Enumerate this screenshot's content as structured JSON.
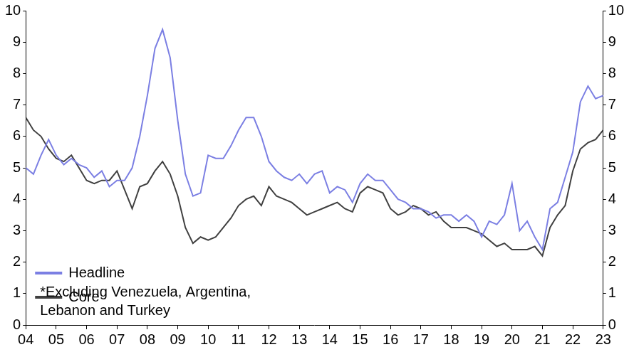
{
  "chart_data": {
    "type": "line",
    "categories": [
      "04",
      null,
      null,
      null,
      "05",
      null,
      null,
      null,
      "06",
      null,
      null,
      null,
      "07",
      null,
      null,
      null,
      "08",
      null,
      null,
      null,
      "09",
      null,
      null,
      null,
      "10",
      null,
      null,
      null,
      "11",
      null,
      null,
      null,
      "12",
      null,
      null,
      null,
      "13",
      null,
      null,
      null,
      "14",
      null,
      null,
      null,
      "15",
      null,
      null,
      null,
      "16",
      null,
      null,
      null,
      "17",
      null,
      null,
      null,
      "18",
      null,
      null,
      null,
      "19",
      null,
      null,
      null,
      "20",
      null,
      null,
      null,
      "21",
      null,
      null,
      null,
      "22",
      null,
      null,
      null,
      "23"
    ],
    "series": [
      {
        "name": "Headline",
        "color": "#7b7fe3",
        "values": [
          5.0,
          4.8,
          5.4,
          5.9,
          5.4,
          5.1,
          5.3,
          5.1,
          5.0,
          4.7,
          4.9,
          4.4,
          4.6,
          4.6,
          5.0,
          6.0,
          7.3,
          8.8,
          9.4,
          8.5,
          6.5,
          4.8,
          4.1,
          4.2,
          5.4,
          5.3,
          5.3,
          5.7,
          6.2,
          6.6,
          6.6,
          6.0,
          5.2,
          4.9,
          4.7,
          4.6,
          4.8,
          4.5,
          4.8,
          4.9,
          4.2,
          4.4,
          4.3,
          3.9,
          4.5,
          4.8,
          4.6,
          4.6,
          4.3,
          4.0,
          3.9,
          3.7,
          3.7,
          3.6,
          3.4,
          3.5,
          3.5,
          3.3,
          3.5,
          3.3,
          2.8,
          3.3,
          3.2,
          3.5,
          4.5,
          3.0,
          3.3,
          2.8,
          2.4,
          3.7,
          3.9,
          4.7,
          5.5,
          7.1,
          7.6,
          7.2,
          7.3
        ]
      },
      {
        "name": "Core",
        "color": "#404040",
        "values": [
          6.6,
          6.2,
          6.0,
          5.6,
          5.3,
          5.2,
          5.4,
          5.0,
          4.6,
          4.5,
          4.6,
          4.6,
          4.9,
          4.3,
          3.7,
          4.4,
          4.5,
          4.9,
          5.2,
          4.8,
          4.1,
          3.1,
          2.6,
          2.8,
          2.7,
          2.8,
          3.1,
          3.4,
          3.8,
          4.0,
          4.1,
          3.8,
          4.4,
          4.1,
          4.0,
          3.9,
          3.7,
          3.5,
          3.6,
          3.7,
          3.8,
          3.9,
          3.7,
          3.6,
          4.2,
          4.4,
          4.3,
          4.2,
          3.7,
          3.5,
          3.6,
          3.8,
          3.7,
          3.5,
          3.6,
          3.3,
          3.1,
          3.1,
          3.1,
          3.0,
          2.9,
          2.7,
          2.5,
          2.6,
          2.4,
          2.4,
          2.4,
          2.5,
          2.2,
          3.1,
          3.5,
          3.8,
          4.9,
          5.6,
          5.8,
          5.9,
          6.2
        ]
      }
    ],
    "ylim": [
      0,
      10
    ],
    "yticks": [
      0,
      1,
      2,
      3,
      4,
      5,
      6,
      7,
      8,
      9,
      10
    ],
    "y2lim": [
      0,
      10
    ],
    "y2ticks": [
      0,
      1,
      2,
      3,
      4,
      5,
      6,
      7,
      8,
      9,
      10
    ],
    "grid": false,
    "legend": "top right",
    "annotation": [
      "*Excluding Venezuela, Argentina,",
      "Lebanon and Turkey"
    ]
  }
}
